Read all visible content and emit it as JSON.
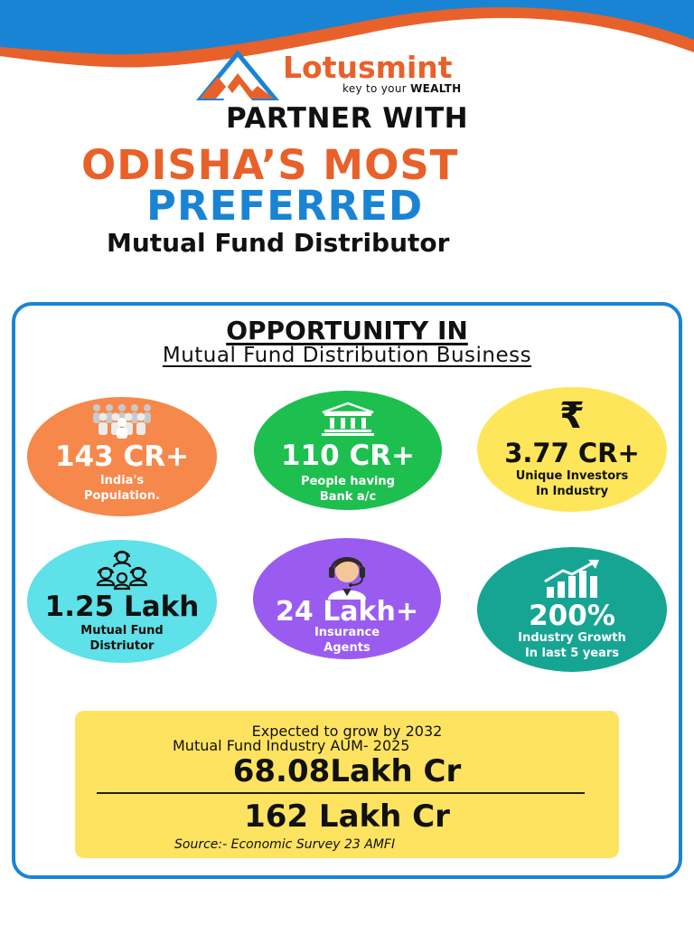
{
  "brand": {
    "name": "Lotusmint",
    "tagline_prefix": "key to your",
    "tagline_emphasis": "WEALTH",
    "colors": {
      "orange": "#e8612a",
      "blue": "#1a84d4"
    }
  },
  "headline": {
    "line1": "PARTNER WITH",
    "line2": "ODISHA’S MOST",
    "line3": "PREFERRED",
    "line4": "Mutual Fund Distributor"
  },
  "opportunity": {
    "title": "OPPORTUNITY IN",
    "subtitle": "Mutual Fund Distribution Business",
    "stats": [
      {
        "value": "143 CR+",
        "label1": "India's",
        "label2": "Population.",
        "icon": "people-group-icon",
        "color": "#f6884b"
      },
      {
        "value": "110 CR+",
        "label1": "People having",
        "label2": "Bank a/c",
        "icon": "bank-icon",
        "color": "#1dbf4f"
      },
      {
        "value": "3.77 CR+",
        "label1": "Unique Investors",
        "label2": "In Industry",
        "icon": "rupee-icon",
        "icon_glyph": "₹",
        "color": "#fde65a"
      },
      {
        "value": "1.25 Lakh",
        "label1": "Mutual Fund",
        "label2": "Distriutor",
        "icon": "team-icon",
        "color": "#5ee1e8"
      },
      {
        "value": "24 Lakh+",
        "label1": "Insurance",
        "label2": "Agents",
        "icon": "headset-agent-icon",
        "color": "#9a5cf0"
      },
      {
        "value": "200%",
        "label1": "Industry Growth",
        "label2": "In last 5 years",
        "icon": "growth-chart-icon",
        "color": "#17a593"
      }
    ]
  },
  "growth": {
    "line1": "Expected to grow by 2032",
    "line2": "Mutual Fund Industry AUM- 2025",
    "current_value": "68.08Lakh Cr",
    "future_value": "162 Lakh Cr",
    "source": "Source:- Economic Survey 23 AMFI"
  }
}
